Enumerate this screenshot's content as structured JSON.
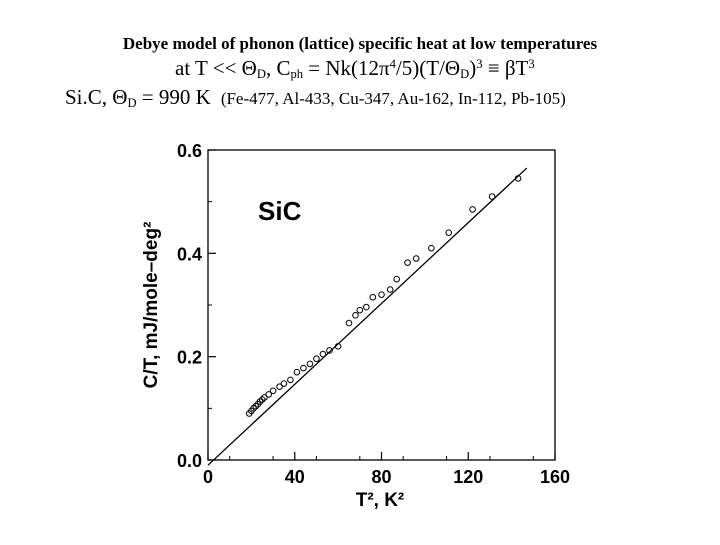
{
  "header": {
    "title": "Debye model of phonon (lattice) specific heat at low temperatures",
    "formula_prefix": "at T << Θ",
    "formula_sub_D1": "D",
    "formula_sep": ",  C",
    "formula_sub_ph": "ph",
    "formula_mid": " = Nk(12π",
    "formula_sup_4": "4",
    "formula_mid2": "/5)(T/Θ",
    "formula_sub_D2": "D",
    "formula_mid3": ")",
    "formula_sup_3a": "3",
    "formula_end": " ≡ βT",
    "formula_sup_3b": "3",
    "sic_prefix": "Si.C,  Θ",
    "sic_sub": "D",
    "sic_value": " = 990 K",
    "debye_list": "(Fe-477, Al-433, Cu-347, Au-162, In-112, Pb-105)"
  },
  "chart_data": {
    "type": "scatter",
    "label": "SiC",
    "ylabel": "C/T, mJ/mole–deg²",
    "xlabel": "T², K²",
    "xlim": [
      0,
      160
    ],
    "ylim": [
      0,
      0.6
    ],
    "xticks": [
      "0",
      "40",
      "80",
      "120",
      "160"
    ],
    "yticks": [
      "0.0",
      "0.2",
      "0.4",
      "0.6"
    ],
    "fit_line": {
      "x": [
        0,
        147
      ],
      "y": [
        -0.01,
        0.565
      ]
    },
    "points": [
      {
        "x": 19,
        "y": 0.09
      },
      {
        "x": 20,
        "y": 0.095
      },
      {
        "x": 21,
        "y": 0.1
      },
      {
        "x": 22,
        "y": 0.104
      },
      {
        "x": 23,
        "y": 0.108
      },
      {
        "x": 24,
        "y": 0.113
      },
      {
        "x": 25,
        "y": 0.117
      },
      {
        "x": 26,
        "y": 0.121
      },
      {
        "x": 28,
        "y": 0.127
      },
      {
        "x": 30,
        "y": 0.134
      },
      {
        "x": 33,
        "y": 0.142
      },
      {
        "x": 35,
        "y": 0.148
      },
      {
        "x": 38,
        "y": 0.155
      },
      {
        "x": 41,
        "y": 0.17
      },
      {
        "x": 44,
        "y": 0.178
      },
      {
        "x": 47,
        "y": 0.186
      },
      {
        "x": 50,
        "y": 0.196
      },
      {
        "x": 53,
        "y": 0.205
      },
      {
        "x": 56,
        "y": 0.212
      },
      {
        "x": 60,
        "y": 0.22
      },
      {
        "x": 65,
        "y": 0.265
      },
      {
        "x": 68,
        "y": 0.28
      },
      {
        "x": 70,
        "y": 0.29
      },
      {
        "x": 73,
        "y": 0.296
      },
      {
        "x": 76,
        "y": 0.315
      },
      {
        "x": 80,
        "y": 0.32
      },
      {
        "x": 84,
        "y": 0.33
      },
      {
        "x": 87,
        "y": 0.35
      },
      {
        "x": 92,
        "y": 0.382
      },
      {
        "x": 96,
        "y": 0.39
      },
      {
        "x": 103,
        "y": 0.41
      },
      {
        "x": 111,
        "y": 0.44
      },
      {
        "x": 122,
        "y": 0.485
      },
      {
        "x": 131,
        "y": 0.51
      },
      {
        "x": 143,
        "y": 0.545
      }
    ]
  }
}
